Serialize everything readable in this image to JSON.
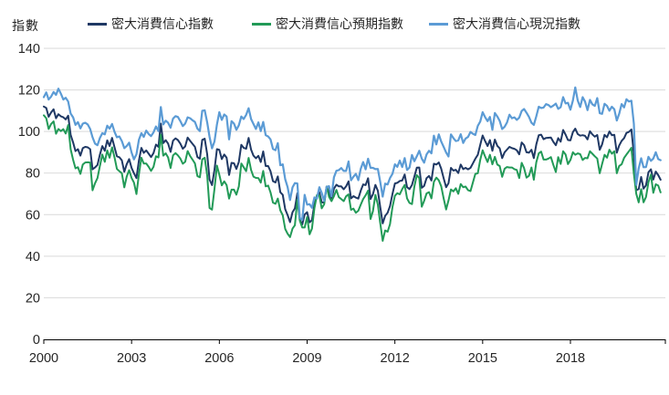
{
  "unit_label": "指數",
  "legend": [
    {
      "label": "密大消費信心指數",
      "color": "#1f3864"
    },
    {
      "label": "密大消費信心預期指數",
      "color": "#229a57"
    },
    {
      "label": "密大消費信心現況指數",
      "color": "#5b9bd5"
    }
  ],
  "chart_data": {
    "type": "line",
    "title": "",
    "ylabel": "指數",
    "xlabel": "",
    "ylim": [
      0,
      140
    ],
    "y_ticks": [
      0,
      20,
      40,
      60,
      80,
      100,
      120,
      140
    ],
    "x_ticks": [
      2000,
      2003,
      2006,
      2009,
      2012,
      2015,
      2018
    ],
    "x_start_year": 2000,
    "frequency": "monthly",
    "x_range_end": "2021-02",
    "grid": "horizontal",
    "legend_position": "top",
    "axis_color": "#000000",
    "grid_color": "#d9d9d9",
    "tick_label_color": "#262626",
    "series": [
      {
        "name": "密大消費信心指數",
        "color": "#1f3864",
        "values": [
          112.0,
          111.3,
          107.1,
          109.2,
          110.7,
          106.4,
          108.3,
          107.3,
          106.8,
          105.8,
          107.6,
          98.4,
          94.7,
          90.6,
          91.5,
          88.4,
          92.0,
          92.6,
          92.4,
          91.5,
          81.8,
          82.7,
          83.9,
          88.8,
          93.0,
          90.7,
          95.7,
          93.0,
          96.9,
          92.4,
          88.1,
          87.6,
          86.1,
          80.6,
          84.2,
          86.7,
          82.4,
          79.9,
          77.6,
          86.0,
          92.1,
          89.7,
          90.9,
          89.3,
          87.7,
          89.6,
          93.7,
          92.6,
          103.8,
          94.4,
          95.8,
          94.2,
          90.2,
          95.6,
          96.7,
          95.9,
          94.2,
          91.7,
          92.8,
          97.1,
          95.5,
          94.1,
          92.6,
          87.7,
          86.9,
          96.0,
          96.5,
          89.1,
          76.9,
          74.2,
          81.6,
          91.5,
          91.2,
          86.7,
          88.9,
          87.4,
          79.1,
          84.9,
          84.7,
          82.0,
          85.4,
          93.6,
          92.1,
          91.7,
          96.9,
          91.3,
          88.4,
          87.1,
          88.3,
          85.3,
          90.4,
          83.4,
          83.4,
          80.9,
          76.1,
          75.5,
          78.4,
          70.8,
          69.5,
          62.6,
          59.8,
          56.4,
          61.2,
          63.0,
          70.3,
          57.6,
          55.3,
          60.1,
          61.2,
          56.3,
          57.3,
          65.1,
          68.7,
          70.8,
          66.0,
          65.7,
          73.5,
          70.6,
          67.4,
          72.5,
          74.4,
          73.6,
          73.6,
          72.2,
          73.6,
          76.0,
          67.8,
          68.9,
          68.2,
          67.7,
          71.6,
          74.5,
          74.2,
          77.5,
          67.5,
          69.8,
          74.3,
          71.5,
          63.7,
          55.8,
          59.4,
          60.9,
          64.1,
          69.9,
          75.0,
          75.3,
          76.2,
          76.4,
          79.3,
          73.2,
          72.3,
          74.3,
          78.3,
          82.6,
          82.7,
          72.9,
          73.8,
          77.6,
          78.6,
          76.4,
          84.5,
          84.1,
          85.1,
          82.1,
          77.5,
          73.2,
          75.1,
          82.5,
          81.2,
          81.6,
          80.0,
          84.1,
          81.9,
          82.5,
          81.8,
          82.5,
          84.6,
          86.9,
          88.8,
          93.6,
          98.1,
          95.4,
          93.0,
          95.9,
          90.7,
          96.1,
          93.1,
          91.9,
          87.2,
          90.0,
          91.3,
          92.6,
          92.0,
          91.7,
          91.0,
          89.0,
          94.7,
          93.5,
          90.0,
          89.8,
          91.2,
          87.2,
          93.8,
          98.2,
          98.5,
          96.3,
          96.9,
          97.0,
          97.1,
          95.0,
          93.4,
          96.8,
          95.1,
          100.7,
          98.5,
          95.9,
          95.7,
          99.7,
          101.4,
          98.8,
          98.0,
          98.2,
          97.9,
          96.2,
          100.1,
          98.6,
          97.5,
          98.3,
          91.2,
          93.8,
          98.4,
          97.2,
          100.0,
          98.2,
          98.4,
          89.8,
          93.2,
          95.5,
          96.8,
          99.3,
          99.8,
          101.0,
          89.1,
          71.8,
          72.3,
          78.1,
          72.5,
          74.1,
          80.4,
          81.8,
          76.9,
          80.7,
          79.0,
          76.8
        ]
      },
      {
        "name": "密大消費信心預期指數",
        "color": "#229a57",
        "values": [
          107.8,
          106.4,
          101.2,
          103.6,
          104.9,
          98.9,
          101.2,
          100.2,
          101.1,
          99.0,
          103.1,
          91.5,
          86.4,
          82.3,
          82.8,
          79.6,
          84.1,
          85.1,
          85.2,
          85.0,
          71.7,
          75.1,
          77.6,
          83.3,
          88.9,
          85.4,
          90.9,
          87.4,
          92.4,
          87.5,
          82.0,
          80.9,
          79.9,
          73.1,
          78.3,
          81.4,
          77.6,
          75.4,
          69.9,
          79.4,
          87.4,
          84.6,
          84.6,
          83.0,
          81.0,
          83.0,
          88.1,
          87.5,
          98.5,
          88.4,
          89.5,
          87.5,
          82.4,
          88.5,
          89.6,
          88.5,
          87.0,
          84.5,
          85.4,
          90.6,
          88.2,
          86.5,
          84.6,
          78.5,
          78.0,
          86.6,
          87.4,
          78.9,
          63.2,
          62.4,
          72.4,
          83.6,
          79.2,
          74.1,
          76.0,
          74.2,
          67.7,
          72.0,
          72.0,
          69.6,
          73.6,
          84.6,
          82.8,
          80.9,
          87.3,
          81.5,
          78.3,
          77.7,
          77.6,
          75.4,
          81.0,
          73.6,
          74.0,
          70.7,
          65.8,
          65.2,
          67.7,
          62.1,
          59.7,
          53.1,
          50.8,
          49.2,
          53.3,
          54.9,
          67.2,
          57.1,
          53.8,
          53.8,
          58.8,
          50.5,
          53.3,
          63.1,
          69.4,
          69.2,
          63.0,
          65.0,
          73.5,
          68.6,
          66.5,
          68.9,
          71.9,
          68.4,
          67.5,
          66.5,
          68.8,
          69.8,
          62.3,
          62.9,
          60.9,
          61.9,
          64.8,
          67.5,
          69.3,
          71.6,
          57.9,
          61.6,
          69.5,
          64.8,
          56.0,
          47.4,
          52.4,
          51.8,
          55.4,
          63.6,
          69.1,
          70.3,
          69.8,
          72.3,
          74.3,
          67.8,
          65.6,
          65.1,
          73.5,
          79.0,
          77.6,
          63.8,
          66.6,
          70.2,
          70.8,
          67.8,
          75.8,
          77.8,
          76.5,
          73.7,
          67.8,
          62.5,
          66.8,
          72.1,
          71.2,
          72.7,
          70.0,
          74.7,
          73.2,
          73.5,
          71.8,
          71.3,
          75.4,
          79.6,
          79.9,
          86.4,
          91.0,
          88.0,
          85.3,
          88.8,
          84.2,
          87.8,
          84.1,
          83.4,
          78.2,
          82.1,
          82.9,
          82.7,
          82.7,
          81.9,
          81.5,
          77.6,
          84.9,
          82.4,
          77.8,
          78.7,
          82.7,
          76.8,
          85.2,
          89.5,
          90.3,
          86.5,
          86.5,
          87.0,
          87.7,
          83.9,
          80.5,
          87.7,
          84.4,
          90.5,
          88.9,
          84.3,
          86.3,
          90.0,
          88.8,
          89.5,
          89.1,
          86.3,
          87.3,
          87.1,
          90.5,
          89.3,
          88.1,
          87.0,
          79.9,
          84.4,
          88.8,
          87.4,
          91.2,
          89.3,
          90.5,
          79.9,
          83.4,
          84.2,
          87.3,
          88.9,
          90.5,
          92.1,
          79.7,
          70.1,
          65.9,
          72.3,
          65.9,
          68.5,
          75.6,
          79.2,
          70.5,
          74.6,
          74.0,
          70.7
        ]
      },
      {
        "name": "密大消費信心現況指數",
        "color": "#5b9bd5",
        "values": [
          116.5,
          118.8,
          115.4,
          116.8,
          119.0,
          117.6,
          120.6,
          118.2,
          115.4,
          116.2,
          114.4,
          108.6,
          106.8,
          103.2,
          104.5,
          101.5,
          103.8,
          104.2,
          103.4,
          101.2,
          97.2,
          94.2,
          93.4,
          96.8,
          99.2,
          98.6,
          102.8,
          101.4,
          103.6,
          99.8,
          97.2,
          97.6,
          95.4,
          92.0,
          93.0,
          94.6,
          89.8,
          86.6,
          89.0,
          96.0,
          99.2,
          97.4,
          100.4,
          98.8,
          97.8,
          99.6,
          102.4,
          100.2,
          111.8,
          103.4,
          105.2,
          104.2,
          101.8,
          106.2,
          107.4,
          107.0,
          105.0,
          102.6,
          103.8,
          106.8,
          106.4,
          105.4,
          104.6,
          101.4,
          100.2,
          110.0,
          110.2,
          104.4,
          97.4,
          91.9,
          95.2,
          103.4,
          109.3,
          105.6,
          108.2,
          107.2,
          96.2,
          105.0,
          103.8,
          100.8,
          103.0,
          107.2,
          106.0,
          108.0,
          111.2,
          106.0,
          103.6,
          101.2,
          104.4,
          100.2,
          104.6,
          98.2,
          97.6,
          96.2,
          91.6,
          91.0,
          94.4,
          83.8,
          84.2,
          77.0,
          73.3,
          67.0,
          73.1,
          75.2,
          75.0,
          58.4,
          57.5,
          69.5,
          64.8,
          65.0,
          63.3,
          68.3,
          67.7,
          73.2,
          70.5,
          66.6,
          73.4,
          73.7,
          68.8,
          78.0,
          81.1,
          81.4,
          82.4,
          81.0,
          81.0,
          85.6,
          76.5,
          78.3,
          79.6,
          76.6,
          82.1,
          85.3,
          81.8,
          86.9,
          82.5,
          82.5,
          81.9,
          82.0,
          75.8,
          68.7,
          74.9,
          74.5,
          77.6,
          79.6,
          84.2,
          83.0,
          86.0,
          82.9,
          87.2,
          81.5,
          82.7,
          88.7,
          85.7,
          88.1,
          90.7,
          87.0,
          85.0,
          89.0,
          90.7,
          89.5,
          98.0,
          93.8,
          98.6,
          95.2,
          92.6,
          89.9,
          88.0,
          98.6,
          96.8,
          95.4,
          95.7,
          98.7,
          94.5,
          96.6,
          97.4,
          99.8,
          98.9,
          98.3,
          102.7,
          104.8,
          109.3,
          106.9,
          105.0,
          107.0,
          100.8,
          108.9,
          107.2,
          105.1,
          101.2,
          102.3,
          104.3,
          108.1,
          106.4,
          106.8,
          105.6,
          106.7,
          109.9,
          110.8,
          109.0,
          107.0,
          104.2,
          103.2,
          107.3,
          111.9,
          111.3,
          111.5,
          113.2,
          112.7,
          111.7,
          112.5,
          113.4,
          110.9,
          111.7,
          116.5,
          113.5,
          113.8,
          110.5,
          114.9,
          121.2,
          114.9,
          111.8,
          116.5,
          114.4,
          110.3,
          115.2,
          113.1,
          112.3,
          116.1,
          108.8,
          108.5,
          113.3,
          112.3,
          110.0,
          111.9,
          110.7,
          105.3,
          108.5,
          113.2,
          111.6,
          115.5,
          114.4,
          114.8,
          103.7,
          74.3,
          82.3,
          87.1,
          82.8,
          82.9,
          87.8,
          85.9,
          87.0,
          90.0,
          86.7,
          86.2
        ]
      }
    ]
  }
}
